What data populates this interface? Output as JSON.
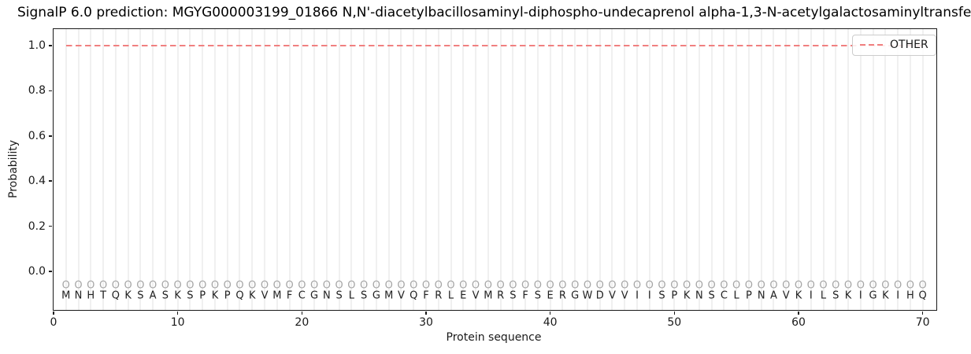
{
  "chart_data": {
    "type": "line",
    "title": "SignalP 6.0 prediction: MGYG000003199_01866 N,N'-diacetylbacillosaminyl-diphospho-undecaprenol alpha-1,3-N-acetylgalactosaminyltransfe",
    "xlabel": "Protein sequence",
    "ylabel": "Probability",
    "xlim": [
      0,
      71.1
    ],
    "ylim": [
      -0.171,
      1.073
    ],
    "x_ticks": [
      0,
      10,
      20,
      30,
      40,
      50,
      60,
      70
    ],
    "y_ticks": [
      "0.0",
      "0.2",
      "0.4",
      "0.6",
      "0.8",
      "1.0"
    ],
    "grid": {
      "vertical_line_per_residue": true,
      "color": "#f0f0f0"
    },
    "legend": {
      "position": "upper-right",
      "entries": [
        {
          "label": "OTHER",
          "color": "#f08080",
          "linestyle": "dashed"
        }
      ]
    },
    "series": [
      {
        "name": "OTHER",
        "color": "#f08080",
        "linestyle": "dashed",
        "x": [
          1,
          70
        ],
        "y": [
          1.0,
          1.0
        ],
        "description": "constant OTHER probability of 1.0 across all 70 residues"
      }
    ],
    "sequence": "MNHTQKSASKSPKPQKVMFCGNSLSGMVQFRLEVMRSFSERGWDVVIISPKNSCLPNAVKILSKIGKIHQ",
    "sequence_length": 70,
    "per_residue_label": "O",
    "per_residue_label_color": "#a6a6a6",
    "per_residue_label_y": -0.063,
    "sequence_letter_y": -0.108
  },
  "colors": {
    "background": "#ffffff",
    "spine": "#1a1a1a",
    "grid": "#f0f0f0",
    "other_line": "#f08080",
    "marker_gray": "#a6a6a6",
    "text": "#1a1a1a"
  }
}
